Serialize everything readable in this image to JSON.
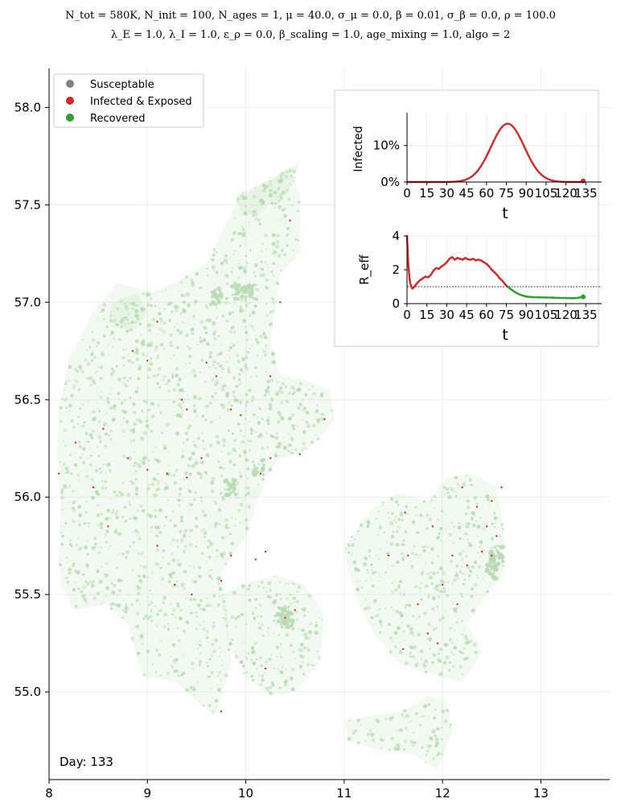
{
  "title_line1": "N_tot = 580K, N_init = 100, N_ages = 1, μ = 40.0, σ_μ = 0.0, β = 0.01, σ_β = 0.0, ρ = 100.0",
  "title_line2": "λ_E = 1.0, λ_I = 1.0, ε_ρ = 0.0, β_scaling = 1.0, age_mixing = 1.0, algo = 2",
  "day_label": "Day: 133",
  "colors": {
    "susceptible": "#808080",
    "infected": "#d62728",
    "recovered": "#2ca02c",
    "recovered_fill": "#b7dbb3",
    "grid": "#eeeeee"
  },
  "chart_data": [
    {
      "type": "scatter",
      "name": "map",
      "xlim": [
        8.0,
        13.7
      ],
      "ylim": [
        54.55,
        58.2
      ],
      "xticks": [
        "8",
        "9",
        "10",
        "11",
        "12",
        "13"
      ],
      "yticks": [
        "55.0",
        "55.5",
        "56.0",
        "56.5",
        "57.0",
        "57.5",
        "58.0"
      ],
      "grid": true,
      "legend_position": "top-left",
      "legend": [
        "Susceptable",
        "Infected & Exposed",
        "Recovered"
      ],
      "regions": [
        {
          "name": "jutland",
          "points": [
            [
              8.12,
              55.55
            ],
            [
              8.25,
              55.42
            ],
            [
              8.58,
              55.45
            ],
            [
              8.8,
              55.35
            ],
            [
              8.95,
              55.08
            ],
            [
              9.3,
              55.05
            ],
            [
              9.55,
              54.93
            ],
            [
              9.7,
              54.88
            ],
            [
              9.85,
              55.15
            ],
            [
              9.8,
              55.45
            ],
            [
              9.75,
              55.62
            ],
            [
              10.0,
              55.8
            ],
            [
              10.1,
              55.95
            ],
            [
              10.2,
              56.1
            ],
            [
              10.35,
              56.2
            ],
            [
              10.55,
              56.22
            ],
            [
              10.75,
              56.3
            ],
            [
              10.9,
              56.4
            ],
            [
              10.85,
              56.55
            ],
            [
              10.6,
              56.6
            ],
            [
              10.35,
              56.62
            ],
            [
              10.25,
              56.8
            ],
            [
              10.35,
              57.15
            ],
            [
              10.55,
              57.25
            ],
            [
              10.55,
              57.55
            ],
            [
              10.45,
              57.68
            ],
            [
              10.15,
              57.6
            ],
            [
              9.95,
              57.55
            ],
            [
              9.6,
              57.2
            ],
            [
              9.35,
              57.12
            ],
            [
              9.05,
              57.05
            ],
            [
              8.7,
              57.1
            ],
            [
              8.45,
              56.95
            ],
            [
              8.2,
              56.7
            ],
            [
              8.1,
              56.45
            ],
            [
              8.08,
              56.2
            ],
            [
              8.12,
              55.95
            ],
            [
              8.1,
              55.7
            ]
          ]
        },
        {
          "name": "funen",
          "points": [
            [
              9.75,
              55.5
            ],
            [
              9.95,
              55.55
            ],
            [
              10.3,
              55.6
            ],
            [
              10.6,
              55.55
            ],
            [
              10.8,
              55.4
            ],
            [
              10.75,
              55.15
            ],
            [
              10.5,
              55.0
            ],
            [
              10.25,
              54.98
            ],
            [
              10.0,
              55.08
            ],
            [
              9.82,
              55.25
            ]
          ]
        },
        {
          "name": "zealand",
          "points": [
            [
              11.0,
              55.75
            ],
            [
              11.3,
              55.95
            ],
            [
              11.55,
              56.02
            ],
            [
              11.85,
              55.98
            ],
            [
              12.05,
              56.1
            ],
            [
              12.3,
              56.12
            ],
            [
              12.55,
              56.05
            ],
            [
              12.62,
              55.85
            ],
            [
              12.62,
              55.6
            ],
            [
              12.45,
              55.5
            ],
            [
              12.25,
              55.35
            ],
            [
              12.4,
              55.2
            ],
            [
              12.2,
              55.05
            ],
            [
              11.8,
              55.1
            ],
            [
              11.55,
              55.15
            ],
            [
              11.3,
              55.3
            ],
            [
              11.15,
              55.45
            ],
            [
              11.05,
              55.6
            ]
          ]
        },
        {
          "name": "lolland-falster",
          "points": [
            [
              11.0,
              54.85
            ],
            [
              11.3,
              54.88
            ],
            [
              11.6,
              54.9
            ],
            [
              11.85,
              54.98
            ],
            [
              12.05,
              54.95
            ],
            [
              12.1,
              54.8
            ],
            [
              11.95,
              54.6
            ],
            [
              11.7,
              54.68
            ],
            [
              11.35,
              54.7
            ],
            [
              11.05,
              54.75
            ]
          ]
        },
        {
          "name": "mors-thy",
          "points": [
            [
              8.6,
              56.9
            ],
            [
              8.85,
              56.85
            ],
            [
              9.0,
              56.95
            ],
            [
              8.9,
              57.05
            ],
            [
              8.65,
              57.0
            ]
          ]
        },
        {
          "name": "vendsyssel-north",
          "points": [
            [
              9.9,
              57.55
            ],
            [
              10.2,
              57.62
            ],
            [
              10.55,
              57.72
            ],
            [
              10.45,
              57.58
            ],
            [
              10.1,
              57.45
            ],
            [
              9.95,
              57.45
            ]
          ]
        }
      ],
      "infected_points": [
        [
          8.1,
          56.12
        ],
        [
          8.27,
          56.28
        ],
        [
          8.55,
          56.35
        ],
        [
          8.85,
          56.75
        ],
        [
          9.0,
          56.7
        ],
        [
          9.1,
          56.9
        ],
        [
          9.35,
          56.5
        ],
        [
          9.4,
          56.45
        ],
        [
          9.6,
          56.69
        ],
        [
          9.7,
          56.62
        ],
        [
          9.85,
          56.45
        ],
        [
          9.95,
          56.42
        ],
        [
          9.55,
          56.2
        ],
        [
          9.4,
          56.1
        ],
        [
          9.2,
          56.12
        ],
        [
          9.0,
          56.14
        ],
        [
          8.8,
          56.2
        ],
        [
          8.45,
          56.05
        ],
        [
          8.6,
          55.85
        ],
        [
          9.1,
          55.75
        ],
        [
          9.28,
          55.55
        ],
        [
          9.45,
          55.5
        ],
        [
          9.75,
          55.57
        ],
        [
          9.85,
          55.7
        ],
        [
          10.1,
          55.68
        ],
        [
          10.2,
          55.72
        ],
        [
          10.4,
          55.38
        ],
        [
          10.5,
          55.42
        ],
        [
          10.2,
          55.12
        ],
        [
          9.75,
          54.9
        ],
        [
          10.15,
          56.12
        ],
        [
          10.25,
          56.2
        ],
        [
          10.55,
          56.22
        ],
        [
          10.8,
          56.4
        ],
        [
          10.25,
          56.62
        ],
        [
          10.35,
          57.0
        ],
        [
          10.45,
          57.42
        ],
        [
          11.45,
          55.7
        ],
        [
          11.65,
          55.7
        ],
        [
          11.75,
          55.45
        ],
        [
          11.85,
          55.3
        ],
        [
          11.6,
          55.22
        ],
        [
          12.0,
          55.55
        ],
        [
          12.1,
          55.7
        ],
        [
          12.25,
          55.65
        ],
        [
          12.4,
          55.72
        ],
        [
          12.5,
          55.7
        ],
        [
          12.55,
          55.8
        ],
        [
          12.45,
          55.85
        ],
        [
          12.35,
          55.95
        ],
        [
          12.2,
          56.05
        ],
        [
          12.5,
          55.98
        ],
        [
          12.6,
          56.05
        ],
        [
          12.15,
          55.45
        ],
        [
          11.95,
          55.25
        ],
        [
          11.9,
          55.85
        ],
        [
          11.62,
          55.92
        ]
      ],
      "recovered_dense_points": [
        [
          10.42,
          55.37
        ],
        [
          10.38,
          55.4
        ],
        [
          12.52,
          55.68
        ],
        [
          12.56,
          55.72
        ],
        [
          12.5,
          55.62
        ],
        [
          9.85,
          56.05
        ],
        [
          10.05,
          57.05
        ],
        [
          9.7,
          57.03
        ],
        [
          10.13,
          56.15
        ],
        [
          9.92,
          57.05
        ]
      ]
    },
    {
      "type": "line",
      "name": "infected-inset",
      "xlabel": "t",
      "ylabel": "Infected",
      "xlim": [
        0,
        147
      ],
      "ylim": [
        0,
        0.19
      ],
      "xticks": [
        "0",
        "15",
        "30",
        "45",
        "60",
        "75",
        "90",
        "105",
        "120",
        "135"
      ],
      "yticks": [
        "0%",
        "10%"
      ],
      "grid": true,
      "series": [
        {
          "color": "#d62728",
          "peak_t": 76,
          "peak_value": 0.16,
          "width": 12.5,
          "end_t": 133,
          "end_value": 0.003
        }
      ]
    },
    {
      "type": "line",
      "name": "reff-inset",
      "xlabel": "t",
      "ylabel": "R_eff",
      "xlim": [
        0,
        147
      ],
      "ylim": [
        0,
        4
      ],
      "xticks": [
        "0",
        "15",
        "30",
        "45",
        "60",
        "75",
        "90",
        "105",
        "120",
        "135"
      ],
      "yticks": [
        "0",
        "2",
        "4"
      ],
      "reference_line": 1.0,
      "grid": true,
      "series": [
        {
          "color": "#d62728",
          "segment": "infected",
          "x": [
            0,
            1,
            2,
            3,
            4,
            5,
            6,
            8,
            10,
            12,
            14,
            16,
            18,
            20,
            22,
            24,
            26,
            28,
            30,
            32,
            34,
            36,
            38,
            40,
            42,
            44,
            46,
            48,
            50,
            52,
            54,
            56,
            58,
            60,
            62,
            64,
            66,
            68,
            70,
            72,
            74,
            76
          ],
          "values": [
            4.0,
            2.3,
            1.4,
            1.05,
            0.9,
            0.95,
            1.05,
            1.25,
            1.4,
            1.5,
            1.6,
            1.55,
            1.7,
            1.95,
            2.1,
            2.05,
            2.2,
            2.3,
            2.45,
            2.65,
            2.75,
            2.6,
            2.7,
            2.65,
            2.6,
            2.7,
            2.62,
            2.6,
            2.65,
            2.55,
            2.6,
            2.55,
            2.45,
            2.35,
            2.2,
            2.0,
            1.85,
            1.7,
            1.5,
            1.35,
            1.15,
            1.0
          ]
        },
        {
          "color": "#2ca02c",
          "segment": "recovered",
          "x": [
            76,
            78,
            80,
            82,
            84,
            86,
            88,
            90,
            92,
            95,
            100,
            105,
            110,
            115,
            120,
            125,
            128,
            130,
            133
          ],
          "values": [
            1.0,
            0.88,
            0.76,
            0.66,
            0.58,
            0.51,
            0.46,
            0.42,
            0.4,
            0.38,
            0.37,
            0.36,
            0.35,
            0.34,
            0.33,
            0.32,
            0.33,
            0.36,
            0.4
          ]
        }
      ]
    }
  ]
}
